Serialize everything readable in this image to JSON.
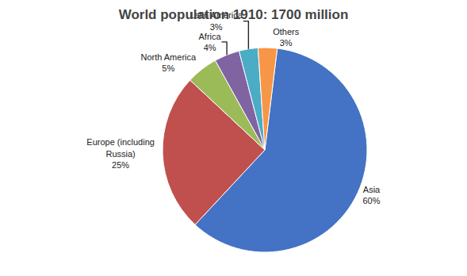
{
  "chart_data": {
    "type": "pie",
    "title": "World population 1910: 1700 million",
    "categories": [
      "Asia",
      "Europe (including\nRussia)",
      "North America",
      "Africa",
      "Latin America",
      "Others"
    ],
    "values": [
      60,
      25,
      5,
      4,
      3,
      3
    ],
    "value_labels": [
      "60%",
      "25%",
      "5%",
      "4%",
      "3%",
      "3%"
    ],
    "colors": [
      "#4472C4",
      "#C0504D",
      "#9BBB59",
      "#8064A2",
      "#4BACC6",
      "#F79646"
    ]
  }
}
